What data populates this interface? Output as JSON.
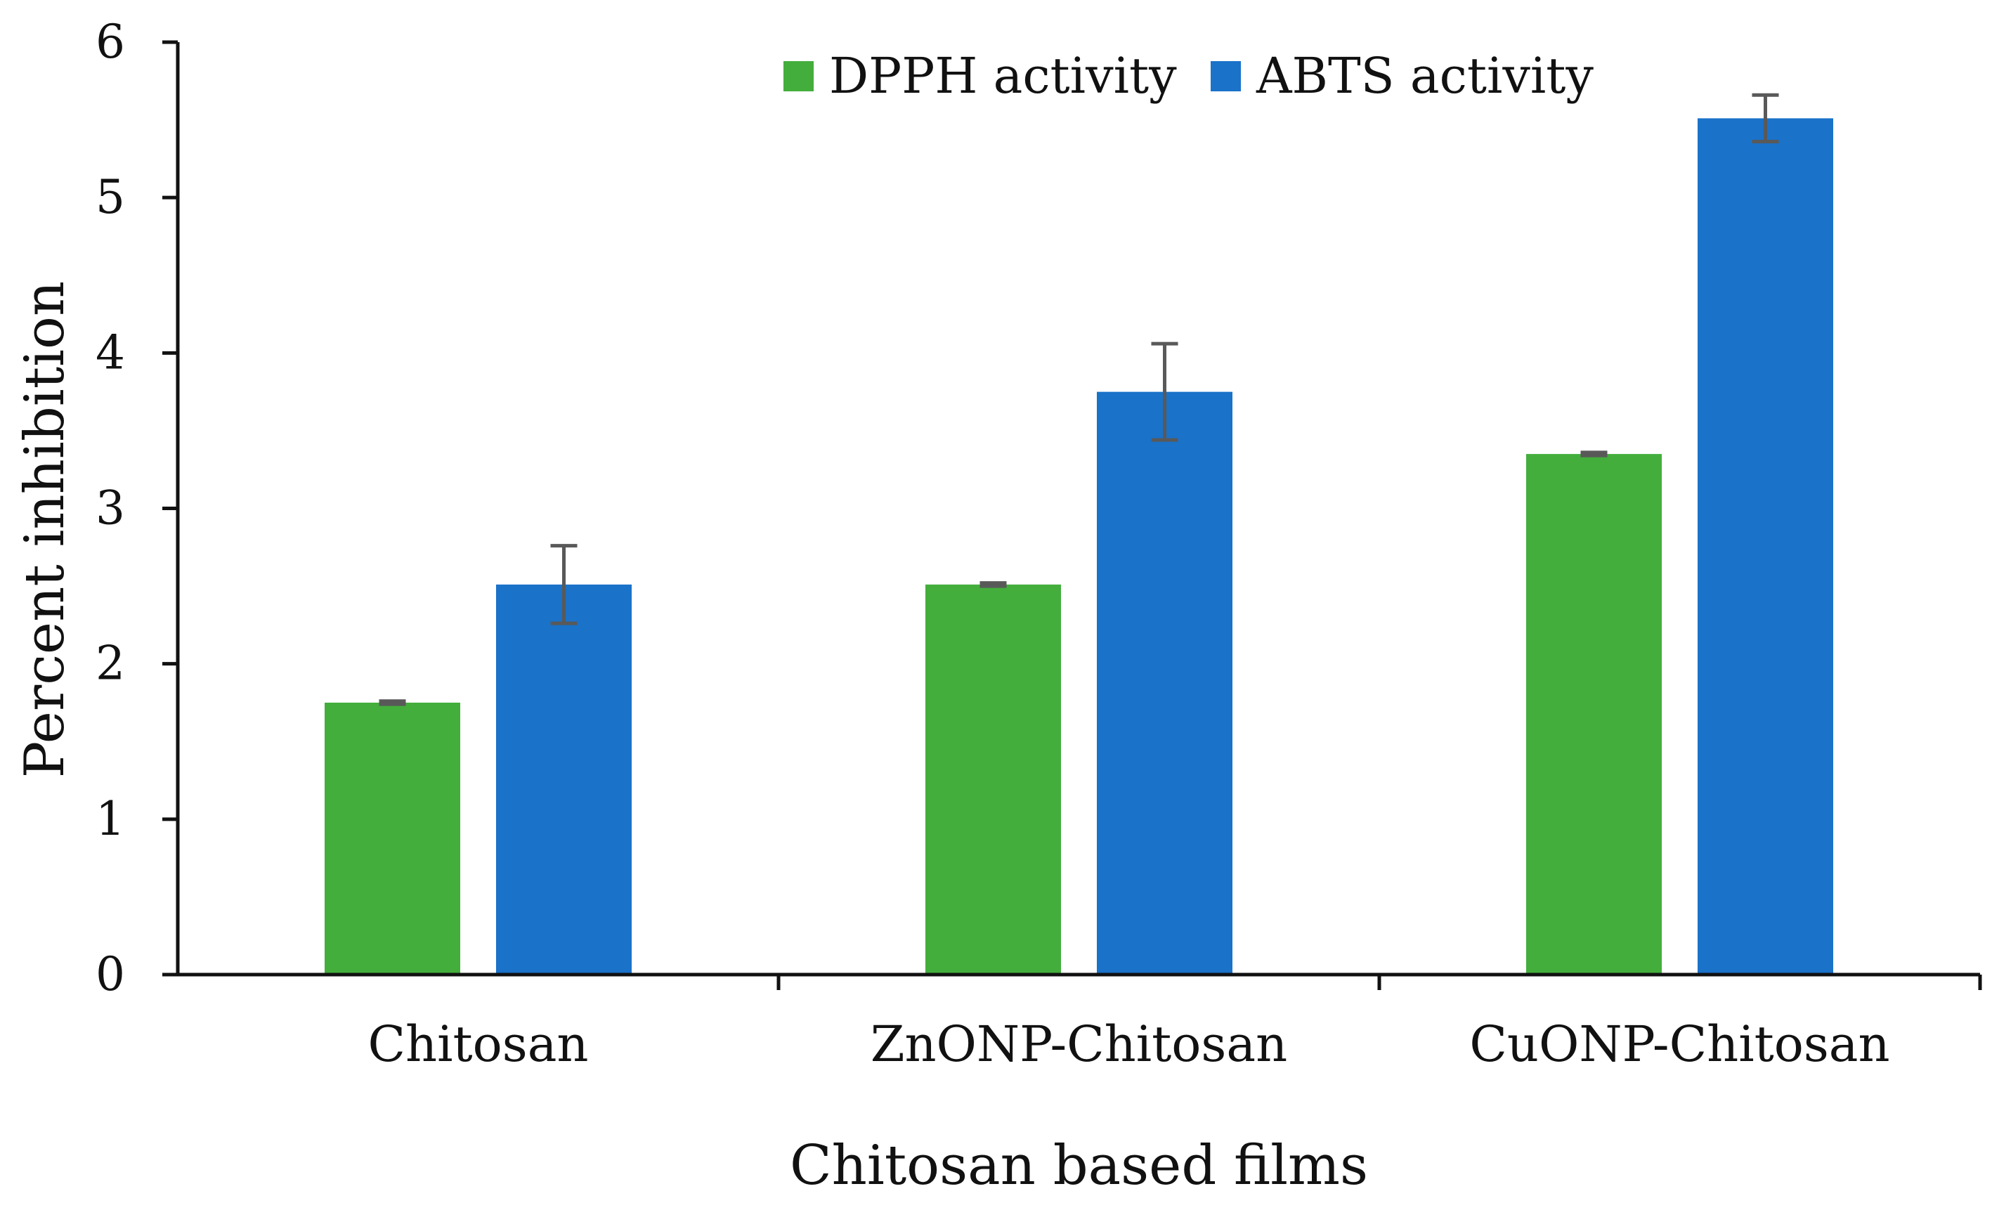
{
  "chart_data": {
    "type": "bar",
    "title": "",
    "xlabel": "Chitosan based films",
    "ylabel": "Percent inhibition",
    "ylim": [
      0,
      6
    ],
    "yticks": [
      0,
      1,
      2,
      3,
      4,
      5,
      6
    ],
    "grid": false,
    "legend_position": "top-center",
    "categories": [
      "Chitosan",
      "ZnONP-Chitosan",
      "CuONP-Chitosan"
    ],
    "series": [
      {
        "name": "DPPH activity",
        "color": "#43ae3c",
        "values": [
          1.75,
          2.51,
          3.35
        ],
        "errors": [
          0.01,
          0.01,
          0.01
        ]
      },
      {
        "name": "ABTS activity",
        "color": "#1a72c9",
        "values": [
          2.51,
          3.75,
          5.51
        ],
        "errors": [
          0.25,
          0.31,
          0.15
        ]
      }
    ],
    "error_bar_color": "#595959",
    "axis_color": "#111111"
  }
}
